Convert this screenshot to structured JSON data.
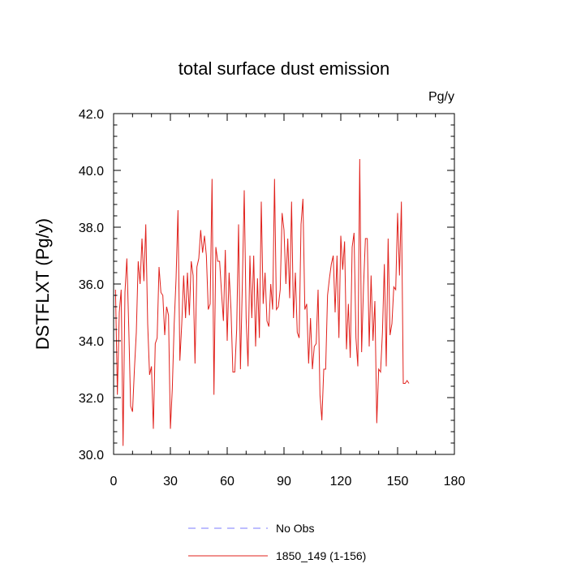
{
  "chart_data": {
    "type": "line",
    "title": "total surface dust emission",
    "units": "Pg/y",
    "ylabel": "DSTFLXT  (Pg/y)",
    "xlabel": "",
    "xlim": [
      0,
      180
    ],
    "ylim": [
      30.0,
      42.0
    ],
    "x_ticks": [
      0,
      30,
      60,
      90,
      120,
      150,
      180
    ],
    "x_tick_labels": [
      "0",
      "30",
      "60",
      "90",
      "120",
      "150",
      "180"
    ],
    "y_ticks": [
      30.0,
      32.0,
      34.0,
      36.0,
      38.0,
      40.0,
      42.0
    ],
    "y_tick_labels": [
      "30.0",
      "32.0",
      "34.0",
      "36.0",
      "38.0",
      "40.0",
      "42.0"
    ],
    "grid": false,
    "legend_position": "bottom",
    "legend": [
      {
        "label": "No Obs",
        "color": "#7b7bff",
        "style": "dashed"
      },
      {
        "label": "1850_149 (1-156)",
        "color": "#e0201b",
        "style": "solid"
      }
    ],
    "series": [
      {
        "name": "1850_149 (1-156)",
        "color": "#e0201b",
        "x": [
          1,
          2,
          3,
          4,
          5,
          6,
          7,
          8,
          9,
          10,
          11,
          12,
          13,
          14,
          15,
          16,
          17,
          18,
          19,
          20,
          21,
          22,
          23,
          24,
          25,
          26,
          27,
          28,
          29,
          30,
          31,
          32,
          33,
          34,
          35,
          36,
          37,
          38,
          39,
          40,
          41,
          42,
          43,
          44,
          45,
          46,
          47,
          48,
          49,
          50,
          51,
          52,
          53,
          54,
          55,
          56,
          57,
          58,
          59,
          60,
          61,
          62,
          63,
          64,
          65,
          66,
          67,
          68,
          69,
          70,
          71,
          72,
          73,
          74,
          75,
          76,
          77,
          78,
          79,
          80,
          81,
          82,
          83,
          84,
          85,
          86,
          87,
          88,
          89,
          90,
          91,
          92,
          93,
          94,
          95,
          96,
          97,
          98,
          99,
          100,
          101,
          102,
          103,
          104,
          105,
          106,
          107,
          108,
          109,
          110,
          111,
          112,
          113,
          114,
          115,
          116,
          117,
          118,
          119,
          120,
          121,
          122,
          123,
          124,
          125,
          126,
          127,
          128,
          129,
          130,
          131,
          132,
          133,
          134,
          135,
          136,
          137,
          138,
          139,
          140,
          141,
          142,
          143,
          144,
          145,
          146,
          147,
          148,
          149,
          150,
          151,
          152,
          153,
          154,
          155,
          156
        ],
        "values": [
          35.8,
          32.1,
          35.0,
          35.8,
          30.3,
          35.7,
          36.9,
          34.5,
          31.7,
          31.5,
          33.0,
          34.3,
          36.8,
          36.0,
          37.6,
          36.1,
          38.1,
          34.6,
          32.8,
          33.1,
          30.9,
          33.9,
          34.1,
          36.6,
          35.7,
          35.6,
          34.2,
          35.2,
          34.9,
          30.9,
          32.3,
          34.6,
          36.2,
          38.6,
          33.3,
          34.6,
          36.3,
          34.8,
          36.4,
          34.9,
          36.8,
          36.3,
          33.2,
          36.6,
          36.9,
          37.9,
          37.1,
          37.7,
          37.0,
          35.1,
          35.3,
          39.7,
          32.1,
          37.3,
          36.8,
          36.8,
          35.7,
          34.7,
          37.2,
          34.0,
          36.4,
          35.1,
          32.9,
          32.9,
          34.4,
          38.1,
          33.0,
          36.0,
          39.3,
          34.8,
          33.1,
          37.0,
          34.8,
          37.0,
          33.8,
          36.2,
          34.1,
          38.9,
          35.3,
          36.4,
          34.7,
          34.5,
          36.0,
          35.1,
          39.7,
          35.1,
          35.2,
          35.8,
          38.5,
          37.9,
          36.0,
          37.6,
          35.5,
          38.9,
          34.8,
          36.4,
          34.3,
          34.1,
          38.1,
          39.0,
          35.1,
          35.3,
          33.2,
          34.8,
          33.0,
          33.8,
          33.9,
          35.8,
          32.1,
          31.2,
          33.0,
          33.0,
          35.6,
          36.2,
          36.7,
          37.0,
          35.0,
          37.0,
          34.1,
          37.7,
          36.5,
          37.5,
          33.7,
          35.3,
          33.4,
          37.3,
          37.8,
          34.1,
          33.1,
          40.4,
          33.6,
          35.9,
          37.6,
          37.6,
          33.8,
          36.3,
          34.0,
          35.4,
          31.1,
          33.0,
          32.9,
          34.3,
          36.7,
          33.1,
          37.6,
          34.2,
          34.6,
          35.9,
          35.8,
          38.5,
          36.3,
          38.9,
          32.5,
          32.5,
          32.6,
          32.5
        ]
      }
    ]
  }
}
